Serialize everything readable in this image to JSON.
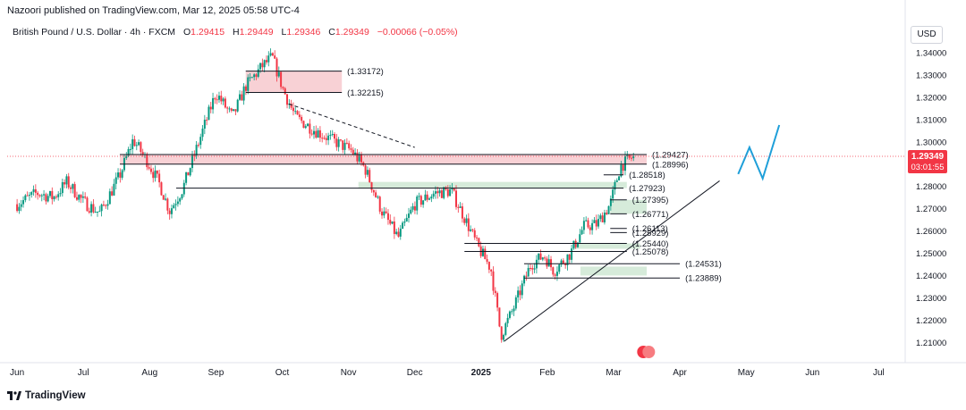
{
  "header": {
    "published_by": "Nazoori published on TradingView.com, Mar 12, 2025 05:58 UTC-4"
  },
  "symbol_bar": {
    "instrument": "British Pound / U.S. Dollar · 4h · FXCM",
    "open_label": "O",
    "open": "1.29415",
    "high_label": "H",
    "high": "1.29449",
    "low_label": "L",
    "low": "1.29346",
    "close_label": "C",
    "close": "1.29349",
    "change": "−0.00066 (−0.05%)"
  },
  "currency_button": "USD",
  "price_tag": {
    "price": "1.29349",
    "countdown": "03:01:55"
  },
  "footer": {
    "brand": "TradingView"
  },
  "colors": {
    "up": "#089981",
    "down": "#f23645",
    "zone_red": "#f7c9ce",
    "zone_green": "#cfe8d3",
    "projection": "#1e9fd9",
    "price_line": "#f23645"
  },
  "chart_data": {
    "type": "candlestick",
    "y_axis": {
      "range": [
        1.2025,
        1.346
      ],
      "ticks": [
        "1.34000",
        "1.33000",
        "1.32000",
        "1.31000",
        "1.30000",
        "1.29000",
        "1.28000",
        "1.27000",
        "1.26000",
        "1.25000",
        "1.24000",
        "1.23000",
        "1.22000",
        "1.21000"
      ]
    },
    "x_axis": {
      "ticks": [
        "Jun",
        "Jul",
        "Aug",
        "Sep",
        "Oct",
        "Nov",
        "Dec",
        "2025",
        "Feb",
        "Mar",
        "Apr",
        "May",
        "Jun",
        "Jul"
      ]
    },
    "path_anchors": [
      {
        "t": 0.0,
        "p": 1.272
      },
      {
        "t": 0.3,
        "p": 1.277
      },
      {
        "t": 0.55,
        "p": 1.275
      },
      {
        "t": 0.75,
        "p": 1.282
      },
      {
        "t": 1.0,
        "p": 1.273
      },
      {
        "t": 1.25,
        "p": 1.268
      },
      {
        "t": 1.55,
        "p": 1.285
      },
      {
        "t": 1.75,
        "p": 1.301
      },
      {
        "t": 1.95,
        "p": 1.292
      },
      {
        "t": 2.15,
        "p": 1.281
      },
      {
        "t": 2.3,
        "p": 1.269
      },
      {
        "t": 2.5,
        "p": 1.279
      },
      {
        "t": 2.8,
        "p": 1.305
      },
      {
        "t": 3.0,
        "p": 1.322
      },
      {
        "t": 3.25,
        "p": 1.311
      },
      {
        "t": 3.45,
        "p": 1.325
      },
      {
        "t": 3.7,
        "p": 1.334
      },
      {
        "t": 3.85,
        "p": 1.338
      },
      {
        "t": 4.02,
        "p": 1.323
      },
      {
        "t": 4.2,
        "p": 1.311
      },
      {
        "t": 4.5,
        "p": 1.305
      },
      {
        "t": 4.8,
        "p": 1.3
      },
      {
        "t": 5.05,
        "p": 1.296
      },
      {
        "t": 5.25,
        "p": 1.288
      },
      {
        "t": 5.5,
        "p": 1.269
      },
      {
        "t": 5.75,
        "p": 1.257
      },
      {
        "t": 6.0,
        "p": 1.272
      },
      {
        "t": 6.3,
        "p": 1.277
      },
      {
        "t": 6.55,
        "p": 1.278
      },
      {
        "t": 6.75,
        "p": 1.266
      },
      {
        "t": 6.95,
        "p": 1.253
      },
      {
        "t": 7.15,
        "p": 1.243
      },
      {
        "t": 7.3,
        "p": 1.213
      },
      {
        "t": 7.5,
        "p": 1.226
      },
      {
        "t": 7.75,
        "p": 1.245
      },
      {
        "t": 7.95,
        "p": 1.249
      },
      {
        "t": 8.1,
        "p": 1.242
      },
      {
        "t": 8.35,
        "p": 1.25
      },
      {
        "t": 8.55,
        "p": 1.262
      },
      {
        "t": 8.75,
        "p": 1.263
      },
      {
        "t": 8.95,
        "p": 1.272
      },
      {
        "t": 9.1,
        "p": 1.289
      },
      {
        "t": 9.3,
        "p": 1.2935
      }
    ],
    "zones": [
      {
        "kind": "red",
        "low": 1.32215,
        "high": 1.33172,
        "t_start": 3.45,
        "t_end": 4.9
      },
      {
        "kind": "red",
        "low": 1.28996,
        "high": 1.29427,
        "t_start": 1.55,
        "t_end": 9.5
      },
      {
        "kind": "green",
        "low": 1.27923,
        "high": 1.282,
        "t_start": 5.15,
        "t_end": 9.2
      },
      {
        "kind": "green",
        "low": 1.26771,
        "high": 1.27395,
        "t_start": 8.95,
        "t_end": 9.5
      },
      {
        "kind": "green",
        "low": 1.252,
        "high": 1.2544,
        "t_start": 8.4,
        "t_end": 9.4
      },
      {
        "kind": "green",
        "low": 1.24,
        "high": 1.244,
        "t_start": 8.5,
        "t_end": 9.5
      }
    ],
    "levels": [
      {
        "label": "(1.33172)",
        "price": 1.33172,
        "t_start": 3.45,
        "t_end": 4.9
      },
      {
        "label": "(1.32215)",
        "price": 1.32215,
        "t_start": 3.45,
        "t_end": 4.9
      },
      {
        "label": "(1.29427)",
        "price": 1.29427,
        "t_start": 1.55,
        "t_end": 9.5
      },
      {
        "label": "(1.28996)",
        "price": 1.28996,
        "t_start": 1.55,
        "t_end": 9.5
      },
      {
        "label": "(1.28518)",
        "price": 1.28518,
        "t_start": 8.85,
        "t_end": 9.15
      },
      {
        "label": "(1.27923)",
        "price": 1.27923,
        "t_start": 2.4,
        "t_end": 9.15
      },
      {
        "label": "(1.27395)",
        "price": 1.27395,
        "t_start": 8.95,
        "t_end": 9.2
      },
      {
        "label": "(1.26771)",
        "price": 1.26771,
        "t_start": 8.95,
        "t_end": 9.2
      },
      {
        "label": "(1.26113)",
        "price": 1.26113,
        "t_start": 8.95,
        "t_end": 9.2
      },
      {
        "label": "(1.25929)",
        "price": 1.25929,
        "t_start": 8.95,
        "t_end": 9.2
      },
      {
        "label": "(1.25440)",
        "price": 1.2544,
        "t_start": 6.75,
        "t_end": 9.2
      },
      {
        "label": "(1.25078)",
        "price": 1.25078,
        "t_start": 6.75,
        "t_end": 9.2
      },
      {
        "label": "(1.24531)",
        "price": 1.24531,
        "t_start": 7.65,
        "t_end": 10.0
      },
      {
        "label": "(1.23889)",
        "price": 1.23889,
        "t_start": 7.65,
        "t_end": 10.0
      }
    ],
    "trendlines": [
      {
        "style": "solid",
        "points": [
          {
            "t": 7.35,
            "p": 1.2105
          },
          {
            "t": 10.6,
            "p": 1.2825
          }
        ]
      },
      {
        "style": "dashed",
        "points": [
          {
            "t": 4.1,
            "p": 1.317
          },
          {
            "t": 6.0,
            "p": 1.2975
          }
        ]
      }
    ],
    "projection": [
      {
        "t": 10.88,
        "p": 1.2855
      },
      {
        "t": 11.05,
        "p": 1.2975
      },
      {
        "t": 11.25,
        "p": 1.2835
      },
      {
        "t": 11.5,
        "p": 1.3075
      }
    ],
    "current_price": 1.29349
  }
}
